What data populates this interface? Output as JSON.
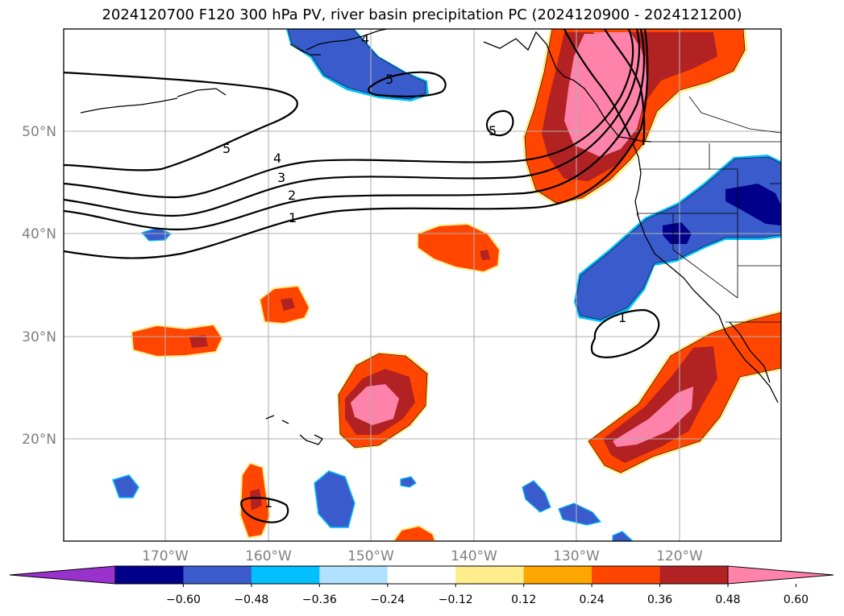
{
  "title": "2024120700 F120 300 hPa PV, river basin precipitation PC (2024120900 - 2024121200)",
  "map": {
    "lon_ticks": [
      "170°W",
      "160°W",
      "150°W",
      "140°W",
      "130°W",
      "120°W"
    ],
    "lat_ticks": [
      "50°N",
      "40°N",
      "30°N",
      "20°N"
    ],
    "extent": {
      "lon_min": -180,
      "lon_max": -110,
      "lat_min": 10,
      "lat_max": 60
    },
    "gridlines": true,
    "pv_contour_labels": [
      "1",
      "2",
      "3",
      "4",
      "5"
    ]
  },
  "colorbar": {
    "ticks": [
      "−0.60",
      "−0.48",
      "−0.36",
      "−0.24",
      "−0.12",
      "0.12",
      "0.24",
      "0.36",
      "0.48",
      "0.60"
    ],
    "colors": [
      "#9932cc",
      "#00008b",
      "#3a5bcc",
      "#00bfff",
      "#b0e2ff",
      "#ffffff",
      "#ffec8b",
      "#ffa500",
      "#ff4500",
      "#b22222",
      "#ff82ab"
    ],
    "extend": "both"
  },
  "palette": {
    "darkblue": "#00008b",
    "blue": "#3a5bcc",
    "cyan": "#00bfff",
    "yellow": "#ffec8b",
    "orange": "#ffa500",
    "redorange": "#ff4500",
    "firebrick": "#b22222",
    "pink": "#ff82ab"
  }
}
